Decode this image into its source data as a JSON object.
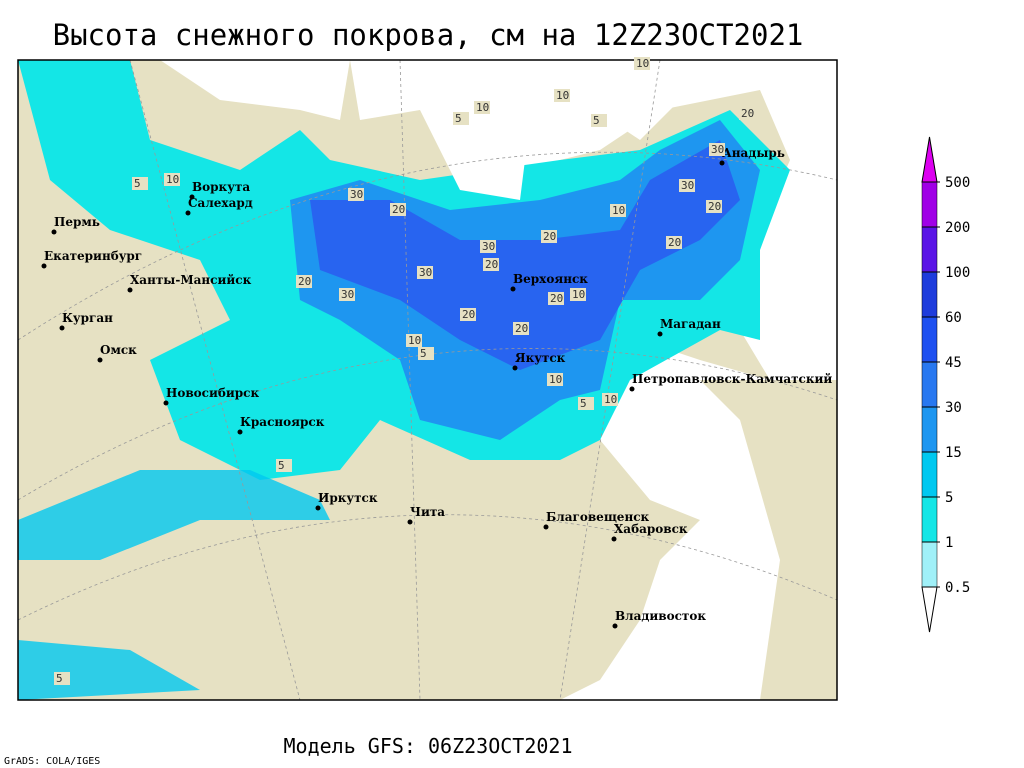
{
  "title": "Высота снежного покрова, см на 12Z23OCT2021",
  "subtitle": "Модель GFS: 06Z23OCT2021",
  "credit": "GrADS: COLA/IGES",
  "cities": [
    "Воркута",
    "Салехард",
    "Пермь",
    "Екатеринбург",
    "Ханты-Мансийск",
    "Курган",
    "Омск",
    "Новосибирск",
    "Красноярск",
    "Иркутск",
    "Чита",
    "Верхоянск",
    "Якутск",
    "Магадан",
    "Петропавловск-Камчатский",
    "Анадырь",
    "Благовещенск",
    "Хабаровск",
    "Владивосток"
  ],
  "contour_labels": [
    10,
    10,
    5,
    5,
    10,
    20,
    30,
    30,
    20,
    30,
    20,
    20,
    30,
    30,
    20,
    10,
    20,
    20,
    30,
    20,
    20,
    10,
    10,
    5,
    10,
    20,
    10,
    5,
    5,
    10,
    5,
    5
  ],
  "legend": {
    "levels": [
      0.5,
      1,
      5,
      15,
      30,
      45,
      60,
      100,
      200,
      500
    ],
    "colors": [
      "#ffffff",
      "#a0f0f8",
      "#14e6e6",
      "#00c8f0",
      "#1e96f0",
      "#2878f0",
      "#1e50f0",
      "#1e3cdc",
      "#5a14e6",
      "#a000e6",
      "#dc00f0"
    ]
  }
}
